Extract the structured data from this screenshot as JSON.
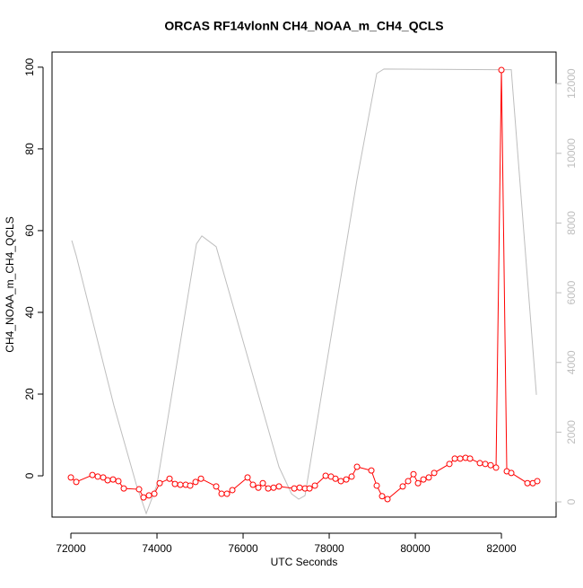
{
  "chart_data": {
    "type": "line",
    "title": "ORCAS RF14vlonN CH4_NOAA_m_CH4_QCLS",
    "x_label": "UTC Seconds",
    "y_label": "CH4_NOAA_m_CH4_QCLS",
    "xlim": [
      71562,
      83270
    ],
    "ylim": [
      -10.1,
      103.7
    ],
    "y2lim": [
      -437,
      12905
    ],
    "xticks": [
      72000,
      74000,
      76000,
      78000,
      80000,
      82000
    ],
    "yticks": [
      0,
      20,
      40,
      60,
      80,
      100
    ],
    "y2ticks": [
      0,
      2000,
      4000,
      6000,
      8000,
      10000,
      12000
    ],
    "series": [
      {
        "color": "#bebebe",
        "axis": "y2",
        "markers": false,
        "x": [
          72021,
          72125,
          73000,
          73521,
          73750,
          74000,
          74917,
          75042,
          75375,
          76833,
          77125,
          77292,
          77438,
          77854,
          78646,
          79104,
          79271,
          81813,
          82229,
          82813
        ],
        "values": [
          7500,
          7060,
          2760,
          490,
          -335,
          490,
          7400,
          7630,
          7320,
          1005,
          230,
          77,
          180,
          3325,
          9250,
          12290,
          12420,
          12400,
          12400,
          3070
        ]
      },
      {
        "color": "#ff0000",
        "markers": true,
        "x": [
          72000,
          72125,
          72500,
          72625,
          72750,
          72854,
          72979,
          73104,
          73229,
          73583,
          73688,
          73813,
          73938,
          74063,
          74292,
          74417,
          74542,
          74667,
          74771,
          74896,
          75021,
          75375,
          75500,
          75625,
          75750,
          76104,
          76229,
          76354,
          76458,
          76583,
          76708,
          76833,
          77188,
          77313,
          77438,
          77542,
          77667,
          77917,
          78042,
          78146,
          78271,
          78396,
          78521,
          78646,
          78979,
          79104,
          79229,
          79354,
          79708,
          79833,
          79958,
          80063,
          80188,
          80313,
          80438,
          80792,
          80917,
          81042,
          81167,
          81271,
          81500,
          81625,
          81750,
          81875,
          82000,
          82125,
          82229,
          82604,
          82729,
          82833
        ],
        "values": [
          -0.4,
          -1.5,
          0.2,
          -0.2,
          -0.4,
          -1.1,
          -0.9,
          -1.3,
          -3.1,
          -3.3,
          -5.3,
          -4.8,
          -4.4,
          -1.8,
          -0.7,
          -2.0,
          -2.2,
          -2.2,
          -2.4,
          -1.5,
          -0.7,
          -2.6,
          -4.4,
          -4.4,
          -3.5,
          -0.4,
          -2.2,
          -2.9,
          -1.8,
          -3.1,
          -2.9,
          -2.6,
          -3.1,
          -2.9,
          -3.1,
          -3.1,
          -2.4,
          0,
          -0.2,
          -0.7,
          -1.3,
          -0.9,
          -0.2,
          2.2,
          1.3,
          -2.4,
          -5.0,
          -5.7,
          -2.6,
          -1.3,
          0.4,
          -1.8,
          -0.9,
          -0.4,
          0.7,
          2.9,
          4.2,
          4.2,
          4.4,
          4.2,
          3.1,
          2.9,
          2.6,
          2.0,
          99.3,
          1.1,
          0.7,
          -1.8,
          -1.8,
          -1.3
        ]
      }
    ]
  }
}
